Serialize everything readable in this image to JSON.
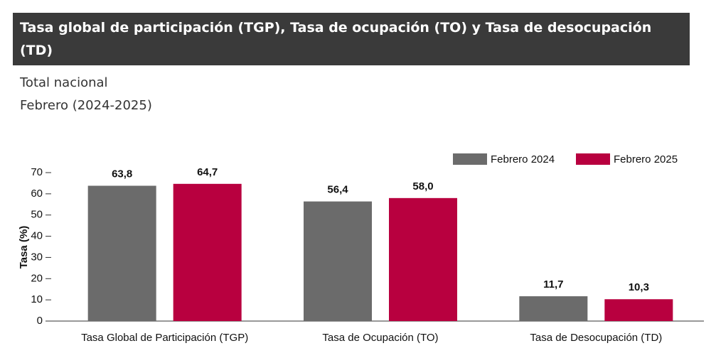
{
  "chart_data": {
    "type": "bar",
    "title": "Tasa global de participación (TGP), Tasa de ocupación (TO) y Tasa de desocupación (TD)",
    "subtitle": [
      "Total nacional",
      "Febrero (2024-2025)"
    ],
    "y_label": "Tasa (%)",
    "categories": [
      "Tasa Global de Participación (TGP)",
      "Tasa de Ocupación (TO)",
      "Tasa de Desocupación (TD)"
    ],
    "series": [
      {
        "name": "Febrero 2024",
        "color": "#6b6b6b",
        "values": [
          63.8,
          56.4,
          11.7
        ],
        "value_labels": [
          "63,8",
          "56,4",
          "11,7"
        ]
      },
      {
        "name": "Febrero 2025",
        "color": "#b8003f",
        "values": [
          64.7,
          58.0,
          10.3
        ],
        "value_labels": [
          "64,7",
          "58,0",
          "10,3"
        ]
      }
    ],
    "ylim": [
      0,
      70
    ],
    "yticks": [
      0,
      10,
      20,
      30,
      40,
      50,
      60,
      70
    ],
    "legend": "top-right",
    "grid": false
  }
}
